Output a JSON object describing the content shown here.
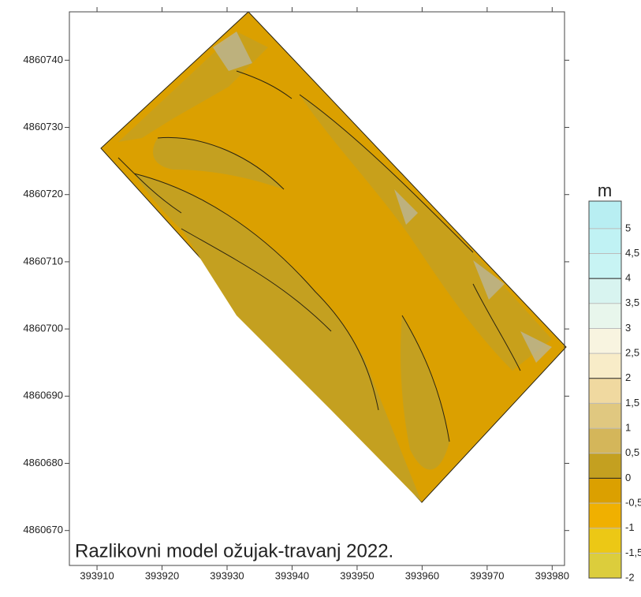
{
  "chart_data": {
    "type": "contour-map",
    "annotation": "Razlikovni model ožujak-travanj 2022.",
    "xlim": [
      393905.75,
      393981.9
    ],
    "ylim": [
      4860664.8,
      4860747.2
    ],
    "xticks": [
      393910,
      393920,
      393930,
      393940,
      393950,
      393960,
      393970,
      393980
    ],
    "yticks": [
      4860670,
      4860680,
      4860690,
      4860700,
      4860710,
      4860720,
      4860730,
      4860740
    ],
    "colorbar": {
      "title": "m",
      "lim": [
        -2,
        5.55
      ],
      "ticks": [
        {
          "value": -2,
          "label": "-2"
        },
        {
          "value": -1.5,
          "label": "-1,5"
        },
        {
          "value": -1,
          "label": "-1"
        },
        {
          "value": -0.5,
          "label": "-0,5"
        },
        {
          "value": 0,
          "label": "0"
        },
        {
          "value": 0.5,
          "label": "0,5"
        },
        {
          "value": 1,
          "label": "1"
        },
        {
          "value": 1.5,
          "label": "1,5"
        },
        {
          "value": 2,
          "label": "2"
        },
        {
          "value": 2.5,
          "label": "2,5"
        },
        {
          "value": 3,
          "label": "3"
        },
        {
          "value": 3.5,
          "label": "3,5"
        },
        {
          "value": 4,
          "label": "4"
        },
        {
          "value": 4.5,
          "label": "4,5"
        },
        {
          "value": 5,
          "label": "5"
        }
      ],
      "colors": [
        "#dccd3c",
        "#ecc815",
        "#f0b000",
        "#dba000",
        "#c4a020",
        "#d4b65a",
        "#e0c880",
        "#f0d9a0",
        "#f8ecc8",
        "#f8f4e0",
        "#e8f6ec",
        "#d8f4f0",
        "#c8f4f4",
        "#c0f2f4",
        "#b8eef2"
      ]
    }
  }
}
